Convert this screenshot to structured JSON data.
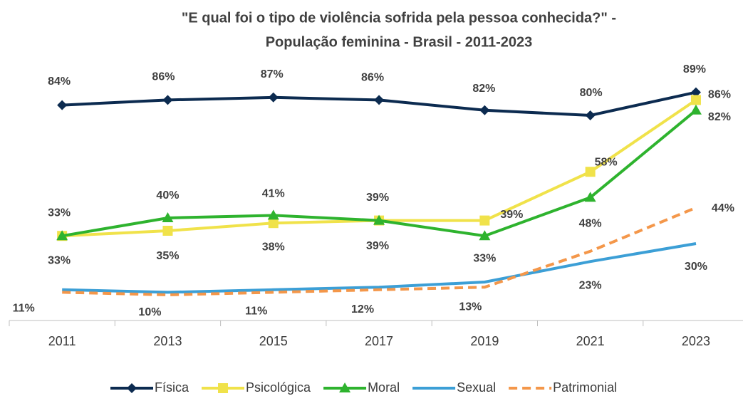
{
  "chart_data": {
    "type": "line",
    "title": "\"E qual foi o tipo de violência sofrida pela pessoa conhecida?\" - População feminina - Brasil - 2011-2023",
    "categories": [
      "2011",
      "2013",
      "2015",
      "2017",
      "2019",
      "2021",
      "2023"
    ],
    "ylim": [
      0,
      100
    ],
    "legend": "bottom",
    "series": [
      {
        "name": "Física",
        "color": "#0c2b50",
        "marker": "diamond",
        "dash": false,
        "values": [
          84,
          86,
          87,
          86,
          82,
          80,
          89
        ],
        "value_labels": [
          "84%",
          "86%",
          "87%",
          "86%",
          "82%",
          "80%",
          "89%"
        ]
      },
      {
        "name": "Psicológica",
        "color": "#f0e24a",
        "marker": "square",
        "dash": false,
        "values": [
          33,
          35,
          38,
          39,
          39,
          58,
          86
        ],
        "value_labels": [
          "33%",
          "35%",
          "38%",
          "39%",
          "39%",
          "58%",
          "86%"
        ]
      },
      {
        "name": "Moral",
        "color": "#2eb32e",
        "marker": "triangle",
        "dash": false,
        "values": [
          33,
          40,
          41,
          39,
          33,
          48,
          82
        ],
        "value_labels": [
          "33%",
          "40%",
          "41%",
          "39%",
          "33%",
          "48%",
          "82%"
        ]
      },
      {
        "name": "Sexual",
        "color": "#3c9fd6",
        "marker": "none",
        "dash": false,
        "values": [
          12,
          11,
          12,
          13,
          15,
          23,
          30
        ],
        "value_labels": [
          null,
          null,
          null,
          null,
          null,
          "23%",
          "30%"
        ]
      },
      {
        "name": "Patrimonial",
        "color": "#f4974a",
        "marker": "none",
        "dash": true,
        "values": [
          11,
          10,
          11,
          12,
          13,
          27,
          44
        ],
        "value_labels": [
          "11%",
          "10%",
          "11%",
          "12%",
          "13%",
          null,
          "44%"
        ]
      }
    ]
  }
}
